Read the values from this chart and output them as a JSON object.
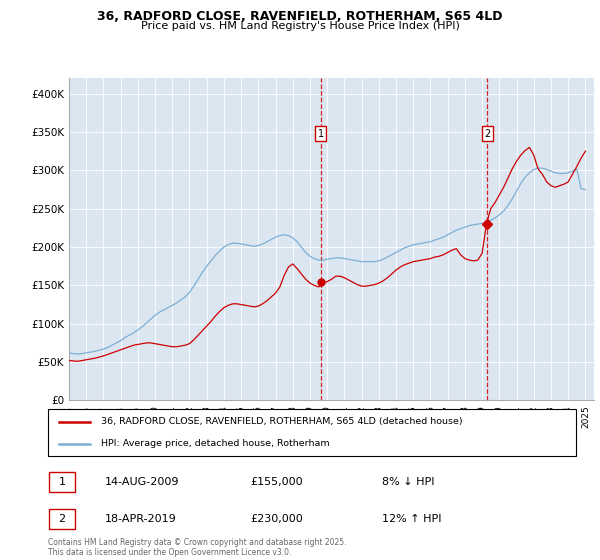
{
  "title1": "36, RADFORD CLOSE, RAVENFIELD, ROTHERHAM, S65 4LD",
  "title2": "Price paid vs. HM Land Registry's House Price Index (HPI)",
  "ylim": [
    0,
    420000
  ],
  "yticks": [
    0,
    50000,
    100000,
    150000,
    200000,
    250000,
    300000,
    350000,
    400000
  ],
  "ytick_labels": [
    "£0",
    "£50K",
    "£100K",
    "£150K",
    "£200K",
    "£250K",
    "£300K",
    "£350K",
    "£400K"
  ],
  "plot_bg_color": "#dce6f1",
  "line1_color": "#cc0000",
  "line2_color": "#7bafd4",
  "vline_color": "#cc0000",
  "marker_box_color": "#cc0000",
  "event1_x": 2009.62,
  "event2_x": 2019.29,
  "legend1": "36, RADFORD CLOSE, RAVENFIELD, ROTHERHAM, S65 4LD (detached house)",
  "legend2": "HPI: Average price, detached house, Rotherham",
  "annotation1_date": "14-AUG-2009",
  "annotation1_price": "£155,000",
  "annotation1_hpi": "8% ↓ HPI",
  "annotation2_date": "18-APR-2019",
  "annotation2_price": "£230,000",
  "annotation2_hpi": "12% ↑ HPI",
  "footer": "Contains HM Land Registry data © Crown copyright and database right 2025.\nThis data is licensed under the Open Government Licence v3.0.",
  "hpi_years": [
    1995.0,
    1995.25,
    1995.5,
    1995.75,
    1996.0,
    1996.25,
    1996.5,
    1996.75,
    1997.0,
    1997.25,
    1997.5,
    1997.75,
    1998.0,
    1998.25,
    1998.5,
    1998.75,
    1999.0,
    1999.25,
    1999.5,
    1999.75,
    2000.0,
    2000.25,
    2000.5,
    2000.75,
    2001.0,
    2001.25,
    2001.5,
    2001.75,
    2002.0,
    2002.25,
    2002.5,
    2002.75,
    2003.0,
    2003.25,
    2003.5,
    2003.75,
    2004.0,
    2004.25,
    2004.5,
    2004.75,
    2005.0,
    2005.25,
    2005.5,
    2005.75,
    2006.0,
    2006.25,
    2006.5,
    2006.75,
    2007.0,
    2007.25,
    2007.5,
    2007.75,
    2008.0,
    2008.25,
    2008.5,
    2008.75,
    2009.0,
    2009.25,
    2009.5,
    2009.75,
    2010.0,
    2010.25,
    2010.5,
    2010.75,
    2011.0,
    2011.25,
    2011.5,
    2011.75,
    2012.0,
    2012.25,
    2012.5,
    2012.75,
    2013.0,
    2013.25,
    2013.5,
    2013.75,
    2014.0,
    2014.25,
    2014.5,
    2014.75,
    2015.0,
    2015.25,
    2015.5,
    2015.75,
    2016.0,
    2016.25,
    2016.5,
    2016.75,
    2017.0,
    2017.25,
    2017.5,
    2017.75,
    2018.0,
    2018.25,
    2018.5,
    2018.75,
    2019.0,
    2019.25,
    2019.5,
    2019.75,
    2020.0,
    2020.25,
    2020.5,
    2020.75,
    2021.0,
    2021.25,
    2021.5,
    2021.75,
    2022.0,
    2022.25,
    2022.5,
    2022.75,
    2023.0,
    2023.25,
    2023.5,
    2023.75,
    2024.0,
    2024.25,
    2024.5,
    2024.75,
    2025.0
  ],
  "hpi_values": [
    62000,
    61000,
    60500,
    61000,
    62000,
    63000,
    64000,
    65500,
    67000,
    69000,
    72000,
    75000,
    78000,
    82000,
    85000,
    88000,
    92000,
    96000,
    101000,
    106000,
    111000,
    115000,
    118000,
    121000,
    124000,
    127000,
    131000,
    135000,
    141000,
    149000,
    158000,
    167000,
    175000,
    182000,
    189000,
    195000,
    200000,
    203000,
    205000,
    205000,
    204000,
    203000,
    202000,
    201000,
    202000,
    204000,
    207000,
    210000,
    213000,
    215000,
    216000,
    215000,
    212000,
    207000,
    200000,
    193000,
    188000,
    185000,
    183000,
    183000,
    184000,
    185000,
    186000,
    186000,
    185000,
    184000,
    183000,
    182000,
    181000,
    181000,
    181000,
    181000,
    182000,
    184000,
    187000,
    190000,
    193000,
    196000,
    199000,
    201000,
    203000,
    204000,
    205000,
    206000,
    207000,
    209000,
    211000,
    213000,
    216000,
    219000,
    222000,
    224000,
    226000,
    228000,
    229000,
    230000,
    231000,
    232000,
    235000,
    238000,
    242000,
    247000,
    254000,
    263000,
    273000,
    283000,
    291000,
    297000,
    301000,
    303000,
    303000,
    301000,
    299000,
    297000,
    296000,
    296000,
    297000,
    299000,
    302000,
    276000,
    275000
  ],
  "red_years": [
    1995.0,
    1995.25,
    1995.5,
    1995.75,
    1996.0,
    1996.25,
    1996.5,
    1996.75,
    1997.0,
    1997.25,
    1997.5,
    1997.75,
    1998.0,
    1998.25,
    1998.5,
    1998.75,
    1999.0,
    1999.25,
    1999.5,
    1999.75,
    2000.0,
    2000.25,
    2000.5,
    2000.75,
    2001.0,
    2001.25,
    2001.5,
    2001.75,
    2002.0,
    2002.25,
    2002.5,
    2002.75,
    2003.0,
    2003.25,
    2003.5,
    2003.75,
    2004.0,
    2004.25,
    2004.5,
    2004.75,
    2005.0,
    2005.25,
    2005.5,
    2005.75,
    2006.0,
    2006.25,
    2006.5,
    2006.75,
    2007.0,
    2007.25,
    2007.5,
    2007.75,
    2008.0,
    2008.25,
    2008.5,
    2008.75,
    2009.0,
    2009.25,
    2009.5,
    2009.75,
    2010.0,
    2010.25,
    2010.5,
    2010.75,
    2011.0,
    2011.25,
    2011.5,
    2011.75,
    2012.0,
    2012.25,
    2012.5,
    2012.75,
    2013.0,
    2013.25,
    2013.5,
    2013.75,
    2014.0,
    2014.25,
    2014.5,
    2014.75,
    2015.0,
    2015.25,
    2015.5,
    2015.75,
    2016.0,
    2016.25,
    2016.5,
    2016.75,
    2017.0,
    2017.25,
    2017.5,
    2017.75,
    2018.0,
    2018.25,
    2018.5,
    2018.75,
    2019.0,
    2019.25,
    2019.5,
    2019.75,
    2020.0,
    2020.25,
    2020.5,
    2020.75,
    2021.0,
    2021.25,
    2021.5,
    2021.75,
    2022.0,
    2022.25,
    2022.5,
    2022.75,
    2023.0,
    2023.25,
    2023.5,
    2023.75,
    2024.0,
    2024.25,
    2024.5,
    2024.75,
    2025.0
  ],
  "red_values": [
    52000,
    51500,
    51000,
    52000,
    53000,
    54000,
    55000,
    56500,
    58000,
    60000,
    62000,
    64000,
    66000,
    68000,
    70000,
    72000,
    73000,
    74000,
    75000,
    75000,
    74000,
    73000,
    72000,
    71000,
    70000,
    70000,
    71000,
    72000,
    74000,
    79000,
    85000,
    91000,
    97000,
    103000,
    110000,
    116000,
    121000,
    124000,
    126000,
    126000,
    125000,
    124000,
    123000,
    122000,
    123000,
    126000,
    130000,
    135000,
    140000,
    148000,
    163000,
    174000,
    178000,
    172000,
    165000,
    158000,
    153000,
    150000,
    148000,
    152000,
    155000,
    158000,
    162000,
    162000,
    160000,
    157000,
    154000,
    151000,
    149000,
    149000,
    150000,
    151000,
    153000,
    156000,
    160000,
    165000,
    170000,
    174000,
    177000,
    179000,
    181000,
    182000,
    183000,
    184000,
    185000,
    187000,
    188000,
    190000,
    193000,
    196000,
    198000,
    190000,
    185000,
    183000,
    182000,
    183000,
    192000,
    230000,
    250000,
    258000,
    268000,
    278000,
    290000,
    302000,
    312000,
    320000,
    326000,
    330000,
    320000,
    302000,
    295000,
    285000,
    280000,
    278000,
    280000,
    282000,
    285000,
    295000,
    305000,
    316000,
    325000
  ],
  "pp_years": [
    1995.5,
    2009.62,
    2019.29
  ],
  "pp_values": [
    52000,
    155000,
    230000
  ],
  "xlim": [
    1995.0,
    2025.5
  ]
}
